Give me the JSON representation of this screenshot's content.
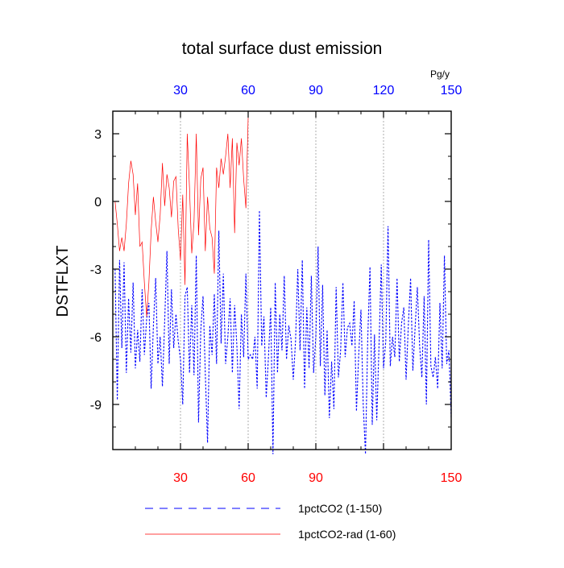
{
  "chart_data": {
    "type": "line",
    "title": "total surface dust emission",
    "ylabel": "DSTFLXT",
    "units": "Pg/y",
    "xlim": [
      0,
      150
    ],
    "ylim": [
      -11,
      4
    ],
    "top_axis": {
      "ticks": [
        30,
        60,
        90,
        120,
        150
      ],
      "tick_labels": [
        "30",
        "60",
        "90",
        "120",
        "150"
      ],
      "color": "#0000ff"
    },
    "bottom_axis": {
      "ticks": [
        30,
        60,
        90,
        150
      ],
      "tick_labels": [
        "30",
        "60",
        "90",
        "150"
      ],
      "color": "#ff0000"
    },
    "y_ticks": [
      3,
      0,
      -3,
      -6,
      -9
    ],
    "y_tick_labels": [
      "3",
      "0",
      "-3",
      "-6",
      "-9"
    ],
    "x_gridlines": [
      30,
      60,
      90,
      120
    ],
    "legend_placement": "bottom",
    "series": [
      {
        "name": "1pctCO2 (1-150)",
        "color": "#0000ff",
        "dash": "dashed",
        "x": [
          1,
          2,
          3,
          4,
          5,
          6,
          7,
          8,
          9,
          10,
          11,
          12,
          13,
          14,
          15,
          16,
          17,
          18,
          19,
          20,
          21,
          22,
          23,
          24,
          25,
          26,
          27,
          28,
          29,
          30,
          31,
          32,
          33,
          34,
          35,
          36,
          37,
          38,
          39,
          40,
          41,
          42,
          43,
          44,
          45,
          46,
          47,
          48,
          49,
          50,
          51,
          52,
          53,
          54,
          55,
          56,
          57,
          58,
          59,
          60,
          61,
          62,
          63,
          64,
          65,
          66,
          67,
          68,
          69,
          70,
          71,
          72,
          73,
          74,
          75,
          76,
          77,
          78,
          79,
          80,
          81,
          82,
          83,
          84,
          85,
          86,
          87,
          88,
          89,
          90,
          91,
          92,
          93,
          94,
          95,
          96,
          97,
          98,
          99,
          100,
          101,
          102,
          103,
          104,
          105,
          106,
          107,
          108,
          109,
          110,
          111,
          112,
          113,
          114,
          115,
          116,
          117,
          118,
          119,
          120,
          121,
          122,
          123,
          124,
          125,
          126,
          127,
          128,
          129,
          130,
          131,
          132,
          133,
          134,
          135,
          136,
          137,
          138,
          139,
          140,
          141,
          142,
          143,
          144,
          145,
          146,
          147,
          148,
          149,
          150
        ],
        "y": [
          -3.0,
          -8.8,
          -2.6,
          -6.5,
          -2.7,
          -7.6,
          -4.3,
          -6.7,
          -3.6,
          -7.4,
          -5.7,
          -7.1,
          -3.9,
          -6.8,
          -5.2,
          -4.5,
          -8.3,
          -5.5,
          -3.4,
          -7.2,
          -6.0,
          -8.2,
          -5.3,
          -2.2,
          -7.2,
          -3.9,
          -6.5,
          -5.0,
          -6.2,
          -7.0,
          -9.0,
          -4.2,
          -3.8,
          -7.6,
          -4.6,
          -7.7,
          -2.4,
          -9.8,
          -5.7,
          -4.2,
          -7.6,
          -10.7,
          -5.5,
          -6.8,
          -4.1,
          -7.2,
          -1.3,
          -6.3,
          -3.2,
          -7.2,
          -6.0,
          -4.3,
          -7.6,
          -4.6,
          -6.4,
          -9.2,
          -5.0,
          -6.9,
          -3.2,
          -7.0,
          -6.8,
          -7.0,
          -6.0,
          -8.3,
          -0.4,
          -6.4,
          -5.1,
          -8.7,
          -6.9,
          -4.7,
          -11.2,
          -3.6,
          -7.6,
          -5.0,
          -6.6,
          -3.3,
          -7.0,
          -5.5,
          -6.1,
          -7.9,
          -6.2,
          -3.0,
          -6.6,
          -2.6,
          -8.3,
          -4.7,
          -7.4,
          -3.3,
          -7.6,
          -6.0,
          -2.0,
          -7.3,
          -3.7,
          -8.6,
          -5.7,
          -9.6,
          -7.1,
          -9.2,
          -3.8,
          -7.8,
          -6.6,
          -3.6,
          -6.9,
          -5.6,
          -5.4,
          -6.4,
          -4.4,
          -9.3,
          -6.8,
          -4.8,
          -9.0,
          -11.2,
          -6.1,
          -2.9,
          -9.9,
          -5.9,
          -9.7,
          -6.4,
          -2.8,
          -7.4,
          -6.2,
          -1.1,
          -7.3,
          -6.0,
          -6.9,
          -3.4,
          -7.1,
          -5.4,
          -4.7,
          -7.9,
          -5.5,
          -3.4,
          -7.5,
          -5.6,
          -3.8,
          -6.4,
          -7.8,
          -4.2,
          -9.0,
          -1.7,
          -7.3,
          -7.8,
          -6.9,
          -8.3,
          -4.5,
          -7.4,
          -2.4,
          -7.2,
          -6.6,
          -9.6
        ]
      },
      {
        "name": "1pctCO2-rad (1-60)",
        "color": "#ff0000",
        "dash": "solid",
        "x": [
          1,
          2,
          3,
          4,
          5,
          6,
          7,
          8,
          9,
          10,
          11,
          12,
          13,
          14,
          15,
          16,
          17,
          18,
          19,
          20,
          21,
          22,
          23,
          24,
          25,
          26,
          27,
          28,
          29,
          30,
          31,
          32,
          33,
          34,
          35,
          36,
          37,
          38,
          39,
          40,
          41,
          42,
          43,
          44,
          45,
          46,
          47,
          48,
          49,
          50,
          51,
          52,
          53,
          54,
          55,
          56,
          57,
          58,
          59,
          60
        ],
        "y": [
          0.0,
          -1.0,
          -2.2,
          -1.6,
          -2.2,
          -1.0,
          0.8,
          1.8,
          1.2,
          -0.6,
          0.8,
          -2.0,
          -1.8,
          -3.6,
          -5.1,
          -3.6,
          -1.3,
          0.2,
          -0.9,
          -1.8,
          -0.6,
          1.7,
          -0.2,
          1.2,
          0.6,
          -0.7,
          0.9,
          1.1,
          -1.2,
          -2.6,
          0.3,
          -3.7,
          3.0,
          0.6,
          -2.3,
          -0.9,
          3.0,
          -1.5,
          1.0,
          1.5,
          -2.2,
          0.2,
          -1.2,
          -1.6,
          -3.2,
          1.5,
          0.6,
          1.9,
          1.2,
          2.0,
          3.0,
          0.6,
          2.8,
          -1.4,
          2.6,
          1.6,
          2.8,
          1.0,
          -0.3,
          3.7
        ]
      }
    ]
  }
}
